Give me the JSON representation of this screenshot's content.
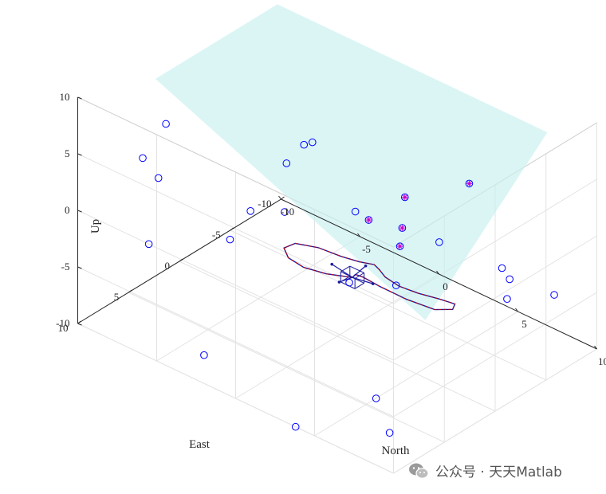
{
  "chart_data": {
    "type": "scatter",
    "title": "",
    "xlabel": "North",
    "ylabel": "East",
    "zlabel": "Up",
    "xlim": [
      -10,
      10
    ],
    "ylim": [
      -10,
      10
    ],
    "zlim": [
      -10,
      10
    ],
    "xticks": [
      "-10",
      "-5",
      "0",
      "5",
      "10"
    ],
    "yticks": [
      "-10",
      "-5",
      "0",
      "5",
      "10"
    ],
    "zticks": [
      "-10",
      "-5",
      "0",
      "5",
      "10"
    ],
    "grid": true,
    "plane_color": "#c8f0f0",
    "marker_color": "#0000ff",
    "highlight_color": "#cc00cc",
    "trajectory_color": "#cc0000",
    "plane": [
      [
        -8.3,
        5,
        10
      ],
      [
        -8.3,
        -7,
        10
      ],
      [
        8.8,
        -7,
        10
      ],
      [
        8.8,
        5,
        0
      ]
    ],
    "points": [
      [
        -5.5,
        10,
        0
      ],
      [
        -7.3,
        7.8,
        5.2
      ],
      [
        7.2,
        10,
        5
      ],
      [
        3.8,
        10,
        -10
      ],
      [
        -2,
        10,
        -7.5
      ],
      [
        -6.5,
        7.5,
        3.8
      ],
      [
        1.3,
        7.2,
        5.8
      ],
      [
        1,
        4,
        10
      ],
      [
        -1.8,
        2.2,
        5.3
      ],
      [
        -1.4,
        1.1,
        6.6
      ],
      [
        -8.6,
        3.5,
        5
      ],
      [
        0.5,
        -1,
        0.8
      ],
      [
        8.5,
        -3,
        0
      ],
      [
        -2.8,
        6.2,
        0.1
      ],
      [
        4.8,
        -9.5,
        -7
      ],
      [
        8.5,
        -3.5,
        -3
      ],
      [
        6.2,
        -0.4,
        2.2
      ],
      [
        5.4,
        2.6,
        -0.5
      ],
      [
        6,
        5.5,
        -8.5
      ],
      [
        7.3,
        -10,
        -7
      ],
      [
        -7.3,
        -2.8,
        -5.3
      ],
      [
        7.5,
        6.5,
        -10
      ]
    ],
    "highlighted": [
      [
        9.2,
        7.9,
        10
      ],
      [
        9,
        1,
        10
      ],
      [
        7.5,
        5,
        10
      ],
      [
        5.9,
        3,
        3.5
      ],
      [
        4.5,
        3.9,
        5.4
      ]
    ],
    "trajectory": [
      [
        4.5,
        5.5,
        1.2
      ],
      [
        3.5,
        6.5,
        1.4
      ],
      [
        2.5,
        7.2,
        1.7
      ],
      [
        1.6,
        7.3,
        2.0
      ],
      [
        1.0,
        6.8,
        2.2
      ],
      [
        1.2,
        6.0,
        2.3
      ],
      [
        2.2,
        5.3,
        2.2
      ],
      [
        3.4,
        4.9,
        2.0
      ],
      [
        4.1,
        4.2,
        1.6
      ],
      [
        4.4,
        3.2,
        1.0
      ],
      [
        4.2,
        2.4,
        0.0
      ],
      [
        4.0,
        1.5,
        -1.3
      ],
      [
        4.3,
        0.6,
        -2.4
      ],
      [
        5.0,
        -0.2,
        -3.0
      ],
      [
        6.0,
        -0.8,
        -3.2
      ],
      [
        7.0,
        -0.7,
        -2.9
      ],
      [
        7.5,
        0.3,
        -2.5
      ],
      [
        7.2,
        1.6,
        -2.0
      ],
      [
        6.1,
        2.7,
        -1.2
      ],
      [
        5.0,
        3.6,
        -0.3
      ],
      [
        4.4,
        4.3,
        0.5
      ],
      [
        4.3,
        4.9,
        1.0
      ],
      [
        4.5,
        5.5,
        1.2
      ]
    ],
    "vehicle": {
      "center": [
        4.5,
        5.5,
        1.2
      ],
      "size": 0.9,
      "arm": 1.3
    }
  },
  "watermark": {
    "icon": "wechat-icon",
    "text": "公众号 · 天天Matlab"
  }
}
